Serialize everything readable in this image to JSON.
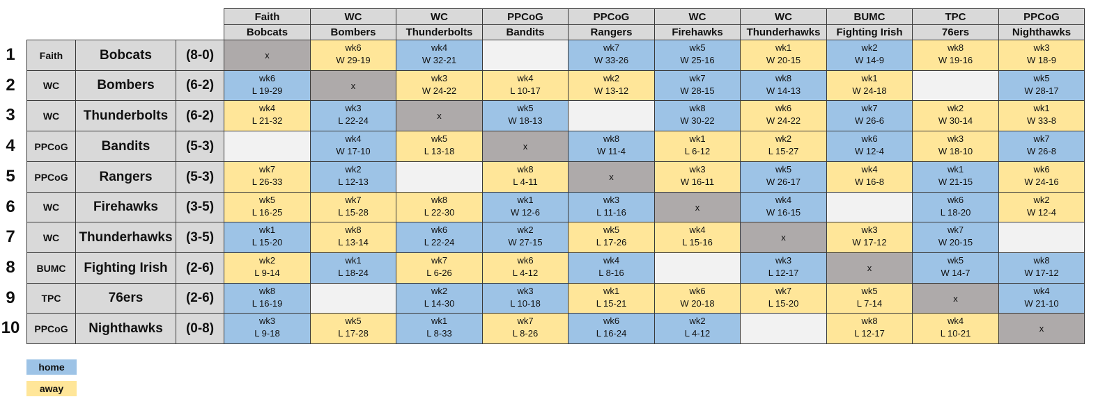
{
  "columns": [
    {
      "church": "Faith",
      "team": "Bobcats"
    },
    {
      "church": "WC",
      "team": "Bombers"
    },
    {
      "church": "WC",
      "team": "Thunderbolts"
    },
    {
      "church": "PPCoG",
      "team": "Bandits"
    },
    {
      "church": "PPCoG",
      "team": "Rangers"
    },
    {
      "church": "WC",
      "team": "Firehawks"
    },
    {
      "church": "WC",
      "team": "Thunderhawks"
    },
    {
      "church": "BUMC",
      "team": "Fighting Irish"
    },
    {
      "church": "TPC",
      "team": "76ers"
    },
    {
      "church": "PPCoG",
      "team": "Nighthawks"
    }
  ],
  "rows": [
    {
      "rank": "1",
      "church": "Faith",
      "team": "Bobcats",
      "record": "(8-0)",
      "cells": [
        {
          "kind": "self",
          "text": "x"
        },
        {
          "kind": "away",
          "week": "wk6",
          "result": "W 29-19"
        },
        {
          "kind": "home",
          "week": "wk4",
          "result": "W 32-21"
        },
        {
          "kind": "empty"
        },
        {
          "kind": "home",
          "week": "wk7",
          "result": "W 33-26"
        },
        {
          "kind": "home",
          "week": "wk5",
          "result": "W 25-16"
        },
        {
          "kind": "away",
          "week": "wk1",
          "result": "W 20-15"
        },
        {
          "kind": "home",
          "week": "wk2",
          "result": "W 14-9"
        },
        {
          "kind": "away",
          "week": "wk8",
          "result": "W 19-16"
        },
        {
          "kind": "away",
          "week": "wk3",
          "result": "W 18-9"
        }
      ]
    },
    {
      "rank": "2",
      "church": "WC",
      "team": "Bombers",
      "record": "(6-2)",
      "cells": [
        {
          "kind": "home",
          "week": "wk6",
          "result": "L 19-29"
        },
        {
          "kind": "self",
          "text": "x"
        },
        {
          "kind": "away",
          "week": "wk3",
          "result": "W 24-22"
        },
        {
          "kind": "away",
          "week": "wk4",
          "result": "L 10-17"
        },
        {
          "kind": "away",
          "week": "wk2",
          "result": "W 13-12"
        },
        {
          "kind": "home",
          "week": "wk7",
          "result": "W 28-15"
        },
        {
          "kind": "home",
          "week": "wk8",
          "result": "W 14-13"
        },
        {
          "kind": "away",
          "week": "wk1",
          "result": "W 24-18"
        },
        {
          "kind": "empty"
        },
        {
          "kind": "home",
          "week": "wk5",
          "result": "W 28-17"
        }
      ]
    },
    {
      "rank": "3",
      "church": "WC",
      "team": "Thunderbolts",
      "record": "(6-2)",
      "cells": [
        {
          "kind": "away",
          "week": "wk4",
          "result": "L 21-32"
        },
        {
          "kind": "home",
          "week": "wk3",
          "result": "L 22-24"
        },
        {
          "kind": "self",
          "text": "x"
        },
        {
          "kind": "home",
          "week": "wk5",
          "result": "W 18-13"
        },
        {
          "kind": "empty"
        },
        {
          "kind": "home",
          "week": "wk8",
          "result": "W 30-22"
        },
        {
          "kind": "away",
          "week": "wk6",
          "result": "W 24-22"
        },
        {
          "kind": "home",
          "week": "wk7",
          "result": "W 26-6"
        },
        {
          "kind": "away",
          "week": "wk2",
          "result": "W 30-14"
        },
        {
          "kind": "away",
          "week": "wk1",
          "result": "W 33-8"
        }
      ]
    },
    {
      "rank": "4",
      "church": "PPCoG",
      "team": "Bandits",
      "record": "(5-3)",
      "cells": [
        {
          "kind": "empty"
        },
        {
          "kind": "home",
          "week": "wk4",
          "result": "W 17-10"
        },
        {
          "kind": "away",
          "week": "wk5",
          "result": "L 13-18"
        },
        {
          "kind": "self",
          "text": "x"
        },
        {
          "kind": "home",
          "week": "wk8",
          "result": "W 11-4"
        },
        {
          "kind": "away",
          "week": "wk1",
          "result": "L 6-12"
        },
        {
          "kind": "away",
          "week": "wk2",
          "result": "L 15-27"
        },
        {
          "kind": "home",
          "week": "wk6",
          "result": "W 12-4"
        },
        {
          "kind": "away",
          "week": "wk3",
          "result": "W 18-10"
        },
        {
          "kind": "home",
          "week": "wk7",
          "result": "W 26-8"
        }
      ]
    },
    {
      "rank": "5",
      "church": "PPCoG",
      "team": "Rangers",
      "record": "(5-3)",
      "cells": [
        {
          "kind": "away",
          "week": "wk7",
          "result": "L 26-33"
        },
        {
          "kind": "home",
          "week": "wk2",
          "result": "L 12-13"
        },
        {
          "kind": "empty"
        },
        {
          "kind": "away",
          "week": "wk8",
          "result": "L 4-11"
        },
        {
          "kind": "self",
          "text": "x"
        },
        {
          "kind": "away",
          "week": "wk3",
          "result": "W 16-11"
        },
        {
          "kind": "home",
          "week": "wk5",
          "result": "W 26-17"
        },
        {
          "kind": "away",
          "week": "wk4",
          "result": "W 16-8"
        },
        {
          "kind": "home",
          "week": "wk1",
          "result": "W 21-15"
        },
        {
          "kind": "away",
          "week": "wk6",
          "result": "W 24-16"
        }
      ]
    },
    {
      "rank": "6",
      "church": "WC",
      "team": "Firehawks",
      "record": "(3-5)",
      "cells": [
        {
          "kind": "away",
          "week": "wk5",
          "result": "L 16-25"
        },
        {
          "kind": "away",
          "week": "wk7",
          "result": "L 15-28"
        },
        {
          "kind": "away",
          "week": "wk8",
          "result": "L 22-30"
        },
        {
          "kind": "home",
          "week": "wk1",
          "result": "W 12-6"
        },
        {
          "kind": "home",
          "week": "wk3",
          "result": "L 11-16"
        },
        {
          "kind": "self",
          "text": "x"
        },
        {
          "kind": "home",
          "week": "wk4",
          "result": "W 16-15"
        },
        {
          "kind": "empty"
        },
        {
          "kind": "home",
          "week": "wk6",
          "result": "L 18-20"
        },
        {
          "kind": "away",
          "week": "wk2",
          "result": "W 12-4"
        }
      ]
    },
    {
      "rank": "7",
      "church": "WC",
      "team": "Thunderhawks",
      "record": "(3-5)",
      "cells": [
        {
          "kind": "home",
          "week": "wk1",
          "result": "L 15-20"
        },
        {
          "kind": "away",
          "week": "wk8",
          "result": "L 13-14"
        },
        {
          "kind": "home",
          "week": "wk6",
          "result": "L 22-24"
        },
        {
          "kind": "home",
          "week": "wk2",
          "result": "W 27-15"
        },
        {
          "kind": "away",
          "week": "wk5",
          "result": "L 17-26"
        },
        {
          "kind": "away",
          "week": "wk4",
          "result": "L 15-16"
        },
        {
          "kind": "self",
          "text": "x"
        },
        {
          "kind": "away",
          "week": "wk3",
          "result": "W 17-12"
        },
        {
          "kind": "home",
          "week": "wk7",
          "result": "W 20-15"
        },
        {
          "kind": "empty"
        }
      ]
    },
    {
      "rank": "8",
      "church": "BUMC",
      "team": "Fighting Irish",
      "record": "(2-6)",
      "cells": [
        {
          "kind": "away",
          "week": "wk2",
          "result": "L 9-14"
        },
        {
          "kind": "home",
          "week": "wk1",
          "result": "L 18-24"
        },
        {
          "kind": "away",
          "week": "wk7",
          "result": "L 6-26"
        },
        {
          "kind": "away",
          "week": "wk6",
          "result": "L 4-12"
        },
        {
          "kind": "home",
          "week": "wk4",
          "result": "L 8-16"
        },
        {
          "kind": "empty"
        },
        {
          "kind": "home",
          "week": "wk3",
          "result": "L 12-17"
        },
        {
          "kind": "self",
          "text": "x"
        },
        {
          "kind": "home",
          "week": "wk5",
          "result": "W 14-7"
        },
        {
          "kind": "home",
          "week": "wk8",
          "result": "W 17-12"
        }
      ]
    },
    {
      "rank": "9",
      "church": "TPC",
      "team": "76ers",
      "record": "(2-6)",
      "cells": [
        {
          "kind": "home",
          "week": "wk8",
          "result": "L 16-19"
        },
        {
          "kind": "empty"
        },
        {
          "kind": "home",
          "week": "wk2",
          "result": "L 14-30"
        },
        {
          "kind": "home",
          "week": "wk3",
          "result": "L 10-18"
        },
        {
          "kind": "away",
          "week": "wk1",
          "result": "L 15-21"
        },
        {
          "kind": "away",
          "week": "wk6",
          "result": "W 20-18"
        },
        {
          "kind": "away",
          "week": "wk7",
          "result": "L 15-20"
        },
        {
          "kind": "away",
          "week": "wk5",
          "result": "L 7-14"
        },
        {
          "kind": "self",
          "text": "x"
        },
        {
          "kind": "home",
          "week": "wk4",
          "result": "W 21-10"
        }
      ]
    },
    {
      "rank": "10",
      "church": "PPCoG",
      "team": "Nighthawks",
      "record": "(0-8)",
      "cells": [
        {
          "kind": "home",
          "week": "wk3",
          "result": "L 9-18"
        },
        {
          "kind": "away",
          "week": "wk5",
          "result": "L 17-28"
        },
        {
          "kind": "home",
          "week": "wk1",
          "result": "L 8-33"
        },
        {
          "kind": "away",
          "week": "wk7",
          "result": "L 8-26"
        },
        {
          "kind": "home",
          "week": "wk6",
          "result": "L 16-24"
        },
        {
          "kind": "home",
          "week": "wk2",
          "result": "L 4-12"
        },
        {
          "kind": "empty"
        },
        {
          "kind": "away",
          "week": "wk8",
          "result": "L 12-17"
        },
        {
          "kind": "away",
          "week": "wk4",
          "result": "L 10-21"
        },
        {
          "kind": "self",
          "text": "x"
        }
      ]
    }
  ],
  "legend": {
    "home": "home",
    "away": "away"
  },
  "colors": {
    "home": "#9dc3e6",
    "away": "#ffe699",
    "empty": "#f2f2f2",
    "self": "#aeaaaa",
    "header": "#d9d9d9"
  }
}
